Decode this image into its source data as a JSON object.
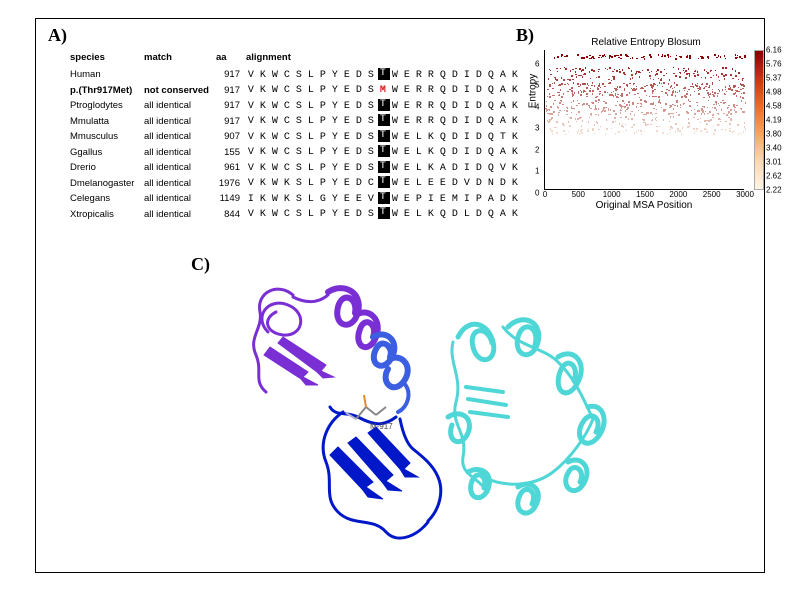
{
  "panelA": {
    "label": "A)",
    "headers": {
      "species": "species",
      "match": "match",
      "aa": "aa",
      "alignment": "alignment"
    },
    "highlight_index": 9,
    "rows": [
      {
        "species": "Human",
        "match": "",
        "aa": "917",
        "seq": "VKWCSLPYEDSTWERRQDIDQAK",
        "bold": false
      },
      {
        "species": "p.(Thr917Met)",
        "match": "not conserved",
        "aa": "917",
        "seq": "VKWCSLPYEDSMWERRQDIDQAK",
        "bold": true,
        "mutant_index": 11
      },
      {
        "species": "Ptroglodytes",
        "match": "all identical",
        "aa": "917",
        "seq": "VKWCSLPYEDSTWERRQDIDQAK",
        "bold": false
      },
      {
        "species": "Mmulatta",
        "match": "all identical",
        "aa": "917",
        "seq": "VKWCSLPYEDSTWERRQDIDQAK",
        "bold": false
      },
      {
        "species": "Mmusculus",
        "match": "all identical",
        "aa": "907",
        "seq": "VKWCSLPYEDSTWELKQDIDQTK",
        "bold": false
      },
      {
        "species": "Ggallus",
        "match": "all identical",
        "aa": "155",
        "seq": "VKWCSLPYEDSTWELKQDIDQAK",
        "bold": false
      },
      {
        "species": "Drerio",
        "match": "all identical",
        "aa": "961",
        "seq": "VKWCSLPYEDSTWELKADIDQVK",
        "bold": false
      },
      {
        "species": "Dmelanogaster",
        "match": "all identical",
        "aa": "1976",
        "seq": "VKWKSLPYEDCTWELEEDVDNDK",
        "bold": false
      },
      {
        "species": "Celegans",
        "match": "all identical",
        "aa": "1149",
        "seq": "IKWKSLGYEEVTWEPIEMIPADK",
        "bold": false
      },
      {
        "species": "Xtropicalis",
        "match": "all identical",
        "aa": "844",
        "seq": "VKWCSLPYEDSTWELKQDLDQAK",
        "bold": false
      }
    ]
  },
  "panelB": {
    "label": "B)",
    "title": "Relative Entropy Blosum",
    "xlabel": "Original MSA Position",
    "ylabel": "Entropy",
    "xlim": [
      0,
      3000
    ],
    "ylim": [
      0,
      6.5
    ],
    "xticks": [
      0,
      500,
      1000,
      1500,
      2000,
      2500,
      3000
    ],
    "yticks": [
      0,
      1,
      2,
      3,
      4,
      5,
      6
    ],
    "colorbar_ticks": [
      6.16,
      5.76,
      5.37,
      4.98,
      4.58,
      4.19,
      3.8,
      3.4,
      3.01,
      2.62,
      2.22
    ],
    "color_low": "#fef3e5",
    "color_high": "#8a0000",
    "n_points": 900
  },
  "panelC": {
    "label": "C)",
    "domain_colors": {
      "domain1_outer": "#7a2fd4",
      "domain1_mid": "#3b5fe0",
      "domain1_core": "#0018c8",
      "domain2": "#4fd6d6"
    },
    "residue_label": "M-917",
    "background": "#ffffff"
  }
}
